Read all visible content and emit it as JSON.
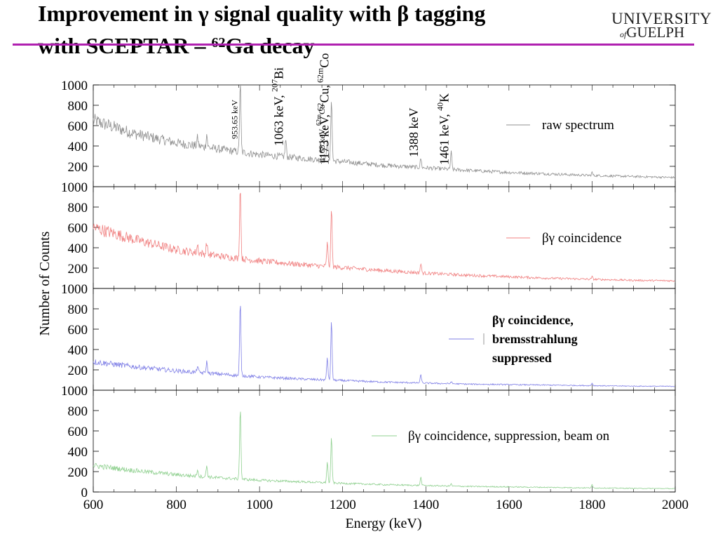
{
  "slide": {
    "title_line1": "Improvement in γ signal quality with β tagging",
    "title_line2_pre": "with SCEPTAR – ",
    "title_line2_sup": "62",
    "title_line2_post": "Ga decay",
    "logo_top": "UNIVERSITY",
    "logo_of": "of",
    "logo_bottom": "GUELPH",
    "rule_color": "#b020b0"
  },
  "chart_data": {
    "type": "line",
    "xlabel": "Energy (keV)",
    "ylabel": "Number of Counts",
    "xlim": [
      600,
      2000
    ],
    "ylim": [
      0,
      1000
    ],
    "x_ticks": [
      600,
      800,
      1000,
      1200,
      1400,
      1600,
      1800,
      2000
    ],
    "y_ticks": [
      0,
      200,
      400,
      600,
      800,
      1000
    ],
    "grid": false,
    "panels": [
      {
        "name": "raw spectrum",
        "color": "#909090",
        "legend": "raw spectrum",
        "background": {
          "x": [
            600,
            700,
            800,
            900,
            1000,
            1100,
            1200,
            1300,
            1400,
            1500,
            1600,
            1700,
            1800,
            1900,
            2000
          ],
          "y": [
            650,
            520,
            430,
            370,
            315,
            280,
            245,
            210,
            185,
            160,
            140,
            125,
            110,
            100,
            90
          ]
        },
        "peaks": [
          {
            "x": 851,
            "height": 80
          },
          {
            "x": 873,
            "height": 130
          },
          {
            "x": 953.65,
            "height": 700
          },
          {
            "x": 1063,
            "height": 170
          },
          {
            "x": 1163,
            "height": 230
          },
          {
            "x": 1173,
            "height": 620
          },
          {
            "x": 1388,
            "height": 90
          },
          {
            "x": 1461,
            "height": 170
          },
          {
            "x": 1800,
            "height": 30
          }
        ]
      },
      {
        "name": "βγ coincidence",
        "color": "#f08080",
        "legend": "βγ coincidence",
        "background": {
          "x": [
            600,
            700,
            800,
            900,
            1000,
            1100,
            1200,
            1300,
            1400,
            1500,
            1600,
            1700,
            1800,
            1900,
            2000
          ],
          "y": [
            600,
            480,
            380,
            320,
            270,
            235,
            205,
            175,
            150,
            130,
            115,
            100,
            90,
            80,
            75
          ]
        },
        "peaks": [
          {
            "x": 851,
            "height": 80
          },
          {
            "x": 873,
            "height": 120
          },
          {
            "x": 953.65,
            "height": 720
          },
          {
            "x": 1163,
            "height": 230
          },
          {
            "x": 1173,
            "height": 580
          },
          {
            "x": 1388,
            "height": 90
          },
          {
            "x": 1800,
            "height": 25
          }
        ]
      },
      {
        "name": "βγ coincidence, bremsstrahlung suppressed",
        "color": "#7f7fe6",
        "legend_lines": [
          "βγ coincidence,",
          "bremsstrahlung",
          "suppressed"
        ],
        "background": {
          "x": [
            600,
            700,
            800,
            900,
            1000,
            1100,
            1200,
            1300,
            1400,
            1500,
            1600,
            1700,
            1800,
            1900,
            2000
          ],
          "y": [
            280,
            230,
            190,
            160,
            130,
            110,
            95,
            80,
            70,
            60,
            55,
            50,
            45,
            40,
            38
          ]
        },
        "peaks": [
          {
            "x": 851,
            "height": 70
          },
          {
            "x": 873,
            "height": 110
          },
          {
            "x": 953.65,
            "height": 720
          },
          {
            "x": 1163,
            "height": 220
          },
          {
            "x": 1173,
            "height": 580
          },
          {
            "x": 1388,
            "height": 80
          },
          {
            "x": 1461,
            "height": 20
          },
          {
            "x": 1800,
            "height": 25
          }
        ]
      },
      {
        "name": "βγ coincidence, suppression, beam on",
        "color": "#8fd08f",
        "legend": "βγ coincidence, suppression, beam on",
        "background": {
          "x": [
            600,
            700,
            800,
            900,
            1000,
            1100,
            1200,
            1300,
            1400,
            1500,
            1600,
            1700,
            1800,
            1900,
            2000
          ],
          "y": [
            260,
            210,
            170,
            140,
            115,
            100,
            85,
            72,
            63,
            55,
            50,
            45,
            40,
            36,
            33
          ]
        },
        "peaks": [
          {
            "x": 851,
            "height": 70
          },
          {
            "x": 873,
            "height": 110
          },
          {
            "x": 953.65,
            "height": 710
          },
          {
            "x": 1163,
            "height": 200
          },
          {
            "x": 1173,
            "height": 450
          },
          {
            "x": 1388,
            "height": 80
          },
          {
            "x": 1461,
            "height": 20
          },
          {
            "x": 1800,
            "height": 30
          }
        ]
      }
    ],
    "annotations": [
      {
        "x": 953.65,
        "text": "953.65 keV",
        "big": false
      },
      {
        "x": 1063,
        "text": "1063 keV,",
        "sup": "207",
        "rest": "Bi",
        "big": true
      },
      {
        "x": 1163,
        "text": "1163 keV,",
        "sup": "62m",
        "rest": "Co",
        "big": false
      },
      {
        "x": 1173,
        "text": "1173 keV,",
        "sup": "62",
        "rest": "Cu,",
        "sup2": "62m",
        "rest2": "Co",
        "big": true
      },
      {
        "x": 1388,
        "text": "1388 keV",
        "big": true
      },
      {
        "x": 1461,
        "text": "1461 keV,",
        "sup": "40",
        "rest": "K",
        "big": true
      }
    ]
  }
}
